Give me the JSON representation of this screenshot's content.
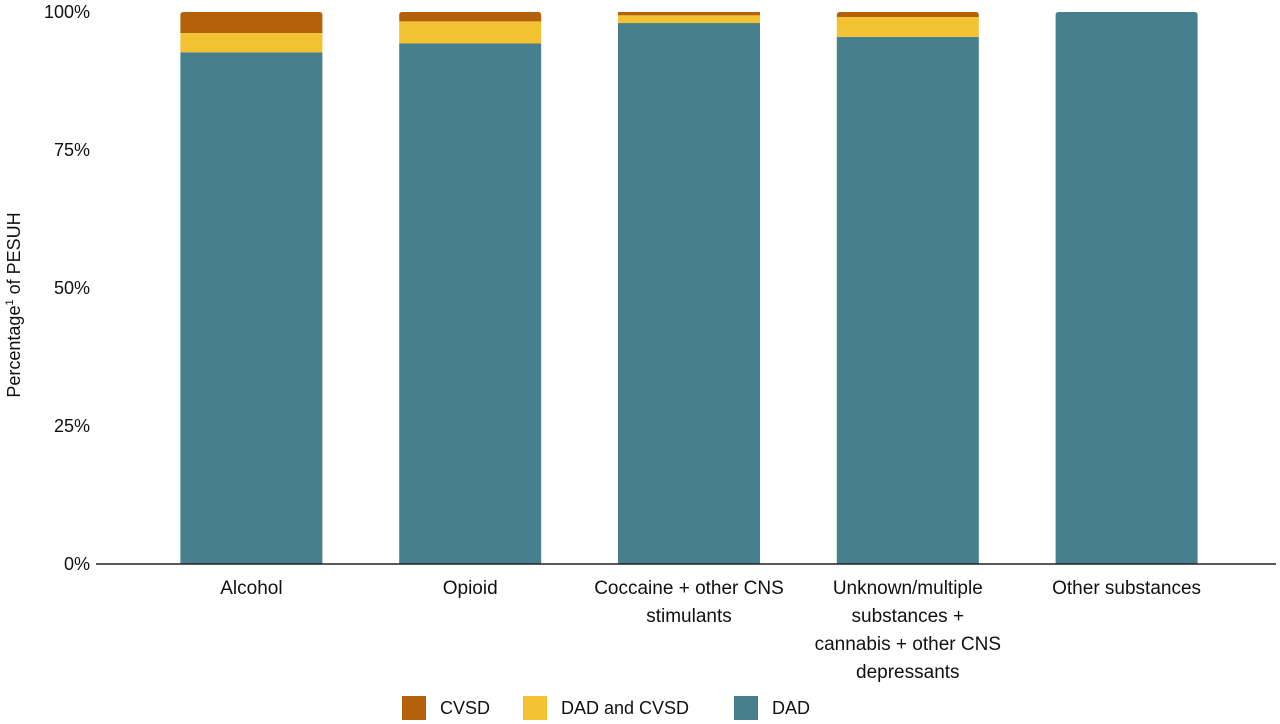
{
  "chart_data": {
    "type": "bar",
    "stacked": true,
    "categories": [
      [
        "Alcohol"
      ],
      [
        "Opioid"
      ],
      [
        "Coccaine + other CNS",
        "stimulants"
      ],
      [
        "Unknown/multiple",
        "substances +",
        "cannabis + other CNS",
        "depressants"
      ],
      [
        "Other substances"
      ]
    ],
    "series": [
      {
        "name": "DAD",
        "color": "#47808c",
        "values": [
          92.7,
          94.3,
          98.0,
          95.5,
          100.0
        ]
      },
      {
        "name": "DAD and CVSD",
        "color": "#f2c232",
        "values": [
          3.5,
          4.0,
          1.4,
          3.6,
          0.0
        ]
      },
      {
        "name": "CVSD",
        "color": "#b5600a",
        "values": [
          3.8,
          1.7,
          0.6,
          0.9,
          0.0
        ]
      }
    ],
    "legend_order": [
      "CVSD",
      "DAD and CVSD",
      "DAD"
    ],
    "legend_position": "bottom",
    "ylabel_main": "Percentage",
    "ylabel_sup": "1",
    "ylabel_rest": " of PESUH",
    "ylim": [
      0,
      100
    ],
    "yticks": [
      "0%",
      "25%",
      "50%",
      "75%",
      "100%"
    ],
    "grid": false
  }
}
